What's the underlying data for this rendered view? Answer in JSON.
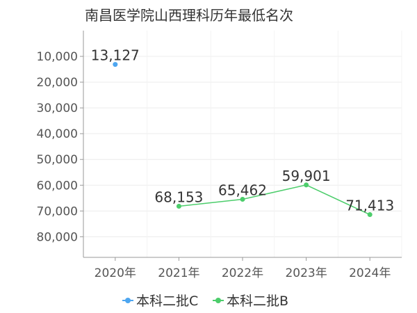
{
  "title": "南昌医学院山西理科历年最低名次",
  "chart_data": {
    "type": "line",
    "title": "南昌医学院山西理科历年最低名次",
    "categories": [
      "2020年",
      "2021年",
      "2022年",
      "2023年",
      "2024年"
    ],
    "y_axis": {
      "reversed": true,
      "ylim": [
        0,
        88000
      ],
      "ticks": [
        10000,
        20000,
        30000,
        40000,
        50000,
        60000,
        70000,
        80000
      ],
      "tick_labels": [
        "10,000",
        "20,000",
        "30,000",
        "40,000",
        "50,000",
        "60,000",
        "70,000",
        "80,000"
      ]
    },
    "grid": true,
    "legend_position": "bottom",
    "series": [
      {
        "name": "本科二批C",
        "color": "#4da6f0",
        "values": [
          13127,
          null,
          null,
          null,
          null
        ],
        "labels": [
          "13,127",
          "",
          "",
          "",
          ""
        ]
      },
      {
        "name": "本科二批B",
        "color": "#4ccd6b",
        "values": [
          null,
          68153,
          65462,
          59901,
          71413
        ],
        "labels": [
          "",
          "68,153",
          "65,462",
          "59,901",
          "71,413"
        ]
      }
    ]
  }
}
